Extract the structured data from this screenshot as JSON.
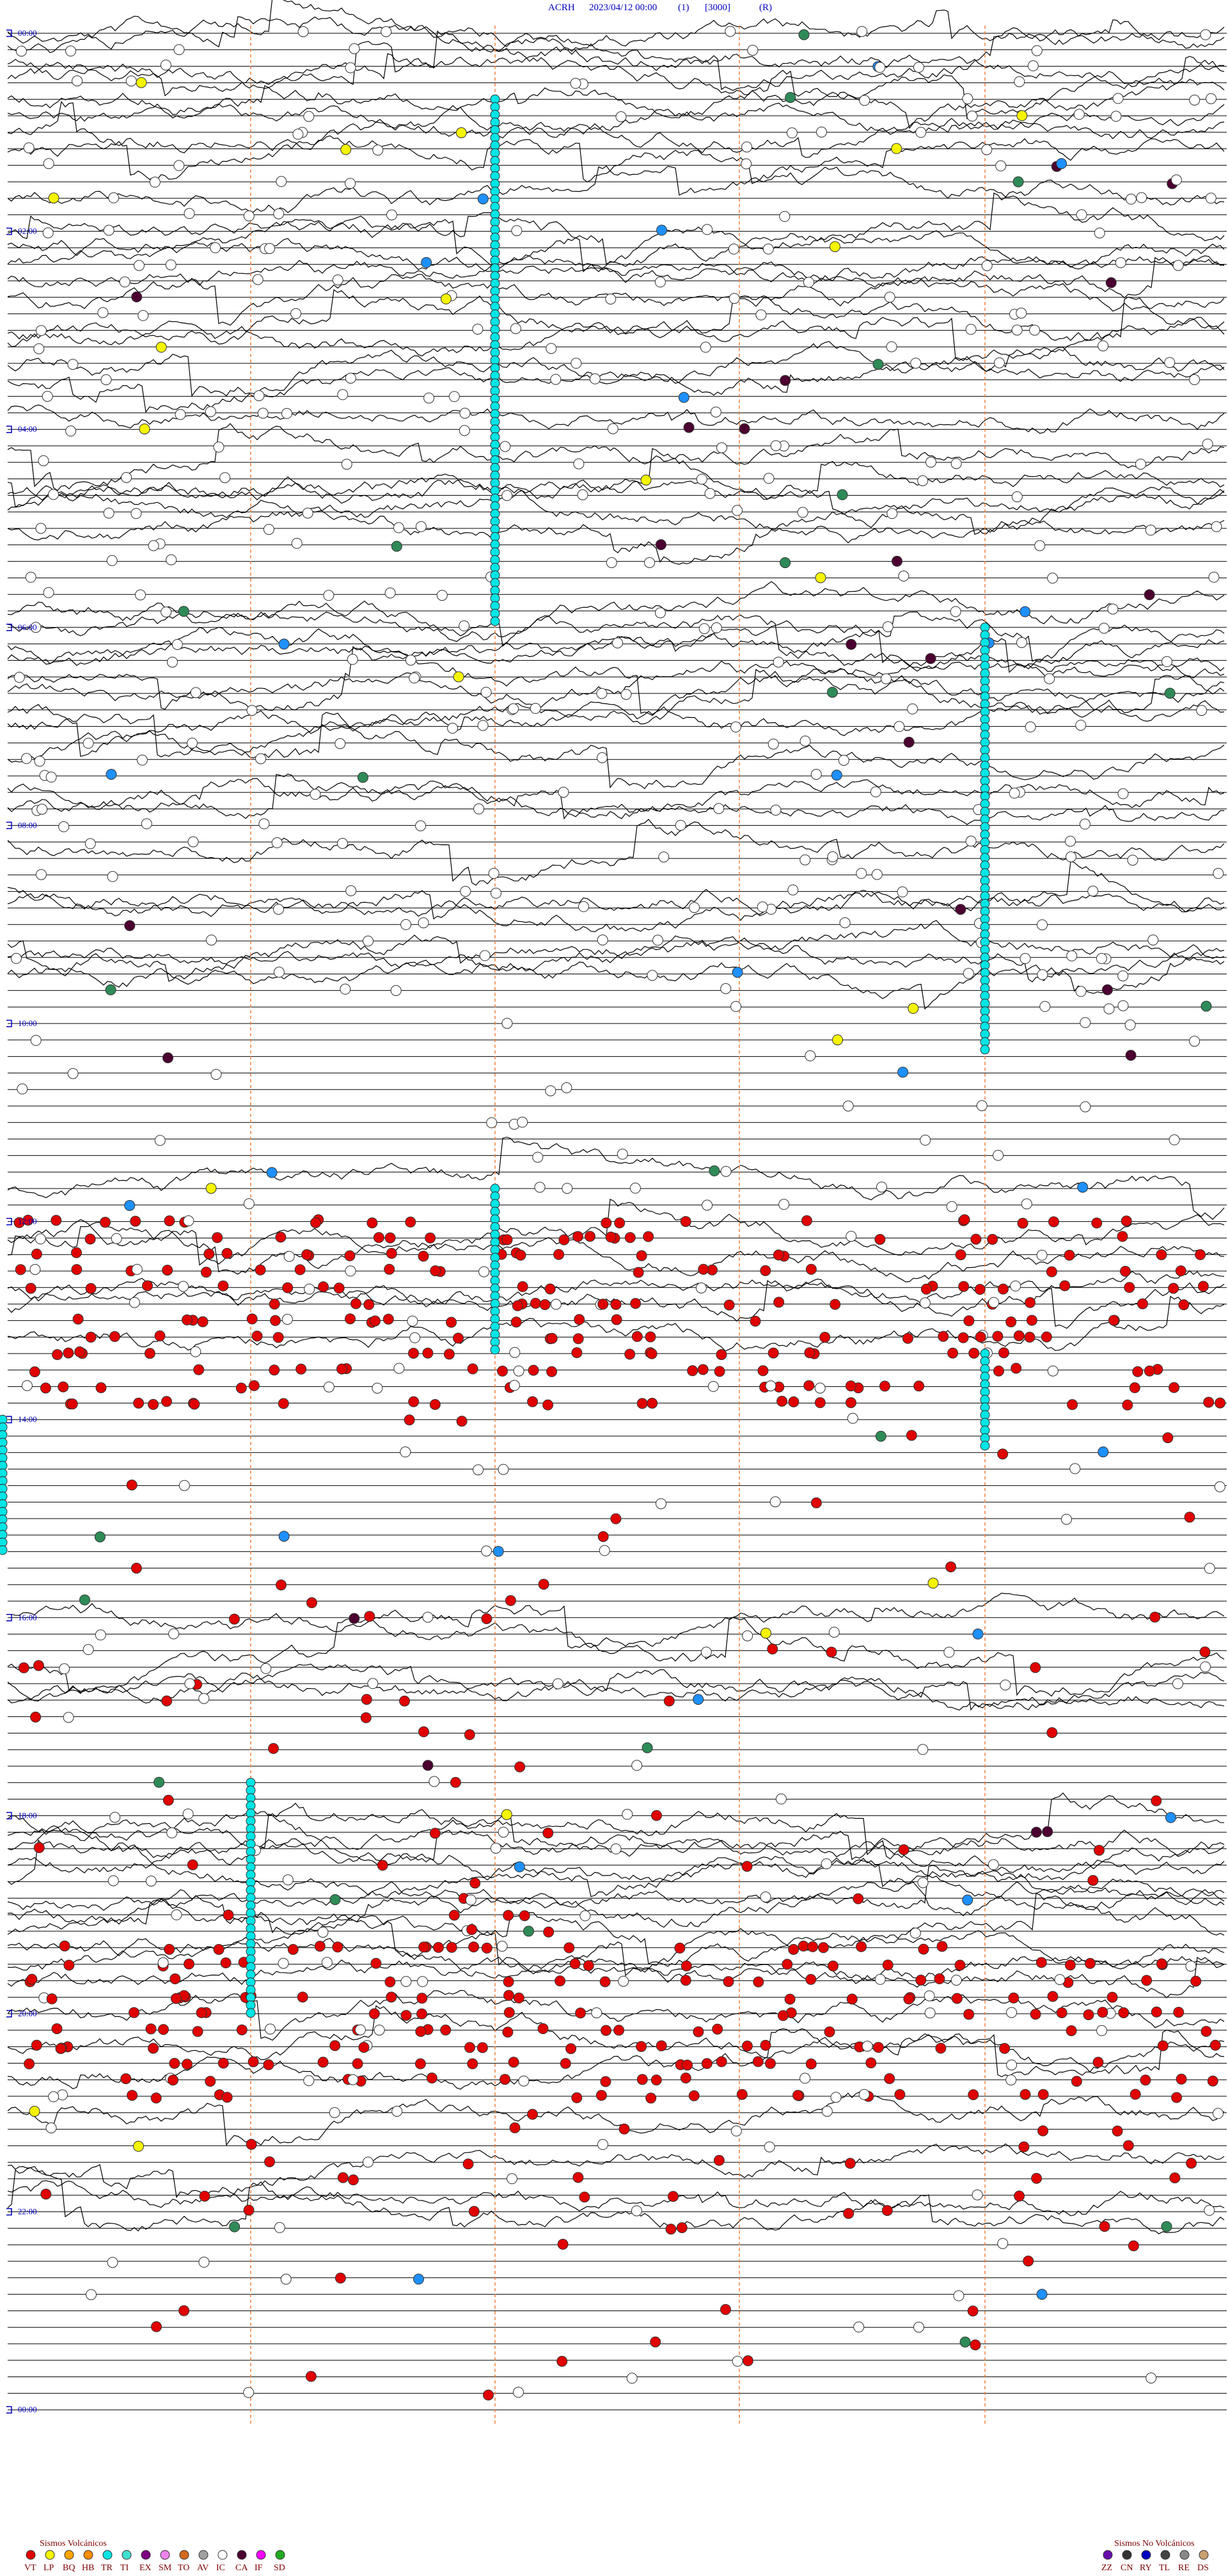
{
  "header": {
    "station": "ACRH",
    "datetime": "2023/04/12 00:00",
    "filter": "(1)",
    "scale": "[3000]",
    "mode": "(R)"
  },
  "time_labels": [
    "00:00",
    "02:00",
    "04:00",
    "06:00",
    "08:00",
    "10:00",
    "12:00",
    "14:00",
    "16:00",
    "18:00",
    "20:00",
    "22:00",
    "00:00"
  ],
  "legend": {
    "volcanic": {
      "title": "Sismos Volcánicos",
      "items": [
        {
          "code": "VT",
          "color": "#e00000"
        },
        {
          "code": "LP",
          "color": "#f5f500"
        },
        {
          "code": "BQ",
          "color": "#ffa500"
        },
        {
          "code": "HB",
          "color": "#ff8c00"
        },
        {
          "code": "TR",
          "color": "#00e5e5"
        },
        {
          "code": "TI",
          "color": "#40e0d0"
        },
        {
          "code": "EX",
          "color": "#800080"
        },
        {
          "code": "SM",
          "color": "#ee82ee"
        },
        {
          "code": "TO",
          "color": "#d2691e"
        },
        {
          "code": "AV",
          "color": "#a0a0a0"
        },
        {
          "code": "IC",
          "color": "#ffffff"
        },
        {
          "code": "CA",
          "color": "#4b0030"
        },
        {
          "code": "IF",
          "color": "#ff00ff"
        },
        {
          "code": "SD",
          "color": "#22aa22"
        }
      ]
    },
    "non_volcanic": {
      "title": "Sismos No Volcánicos",
      "items": [
        {
          "code": "ZZ",
          "color": "#6a0dad"
        },
        {
          "code": "CN",
          "color": "#333333"
        },
        {
          "code": "RY",
          "color": "#0000c0"
        },
        {
          "code": "TL",
          "color": "#444444"
        },
        {
          "code": "RE",
          "color": "#888888"
        },
        {
          "code": "DS",
          "color": "#c8a070"
        }
      ]
    }
  }
}
